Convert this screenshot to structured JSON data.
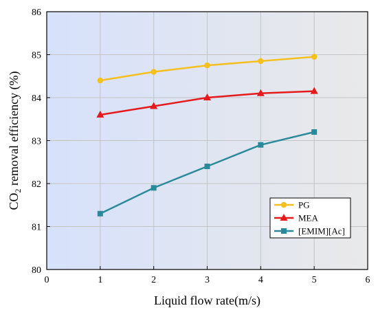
{
  "chart_data": {
    "type": "line",
    "title": "",
    "xlabel": "Liquid flow rate(m/s)",
    "ylabel": {
      "prefix": "CO",
      "subscript": "2",
      "suffix": " removal efficiency (%)"
    },
    "xlim": [
      0,
      6
    ],
    "ylim": [
      80,
      86
    ],
    "xticks": [
      "0",
      "1",
      "2",
      "3",
      "4",
      "5",
      "6"
    ],
    "yticks": [
      "80",
      "81",
      "82",
      "83",
      "84",
      "85",
      "86"
    ],
    "grid": true,
    "legend_position": "lower-right",
    "background_gradient": [
      "#d6e1fb",
      "#e9e9e9"
    ],
    "x": [
      1,
      2,
      3,
      4,
      5
    ],
    "series": [
      {
        "name": "PG",
        "values": [
          84.4,
          84.6,
          84.75,
          84.85,
          84.95
        ],
        "color": "#f5c01e",
        "marker": "circle"
      },
      {
        "name": "MEA",
        "values": [
          83.6,
          83.8,
          84.0,
          84.1,
          84.15
        ],
        "color": "#e41a1c",
        "marker": "triangle"
      },
      {
        "name": "[EMIM][Ac]",
        "values": [
          81.3,
          81.9,
          82.4,
          82.9,
          83.2
        ],
        "color": "#2a8a9a",
        "marker": "square"
      }
    ]
  }
}
